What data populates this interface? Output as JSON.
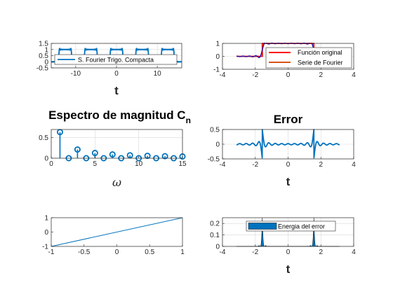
{
  "colors": {
    "blue": "#0072bd",
    "red": "#ff0000",
    "orange": "#d95319",
    "navy": "#0000cc",
    "axis": "#262626",
    "grid": "#d9d9d9"
  },
  "chart_data": [
    {
      "id": "p1",
      "type": "line",
      "xlabel": "t",
      "xlim": [
        -16,
        16
      ],
      "ylim": [
        -0.5,
        1.5
      ],
      "xticks": [
        -10,
        0,
        10
      ],
      "yticks": [
        -0.5,
        0,
        0.5,
        1,
        1.5
      ],
      "ytick_labels": [
        "-0.5",
        "0",
        "0.5",
        "1",
        "1.5"
      ],
      "grid": true,
      "legend_position": "inside-lower",
      "series": [
        {
          "name": "S. Fourier Trigo. Compacta",
          "color": "#0072bd",
          "kind": "square_wave",
          "period": 6.2832,
          "high_halfwidth": 1.5708,
          "harmonics": 15
        }
      ]
    },
    {
      "id": "p2",
      "type": "line",
      "xlabel": "",
      "xlim": [
        -4,
        4
      ],
      "ylim": [
        -1,
        1
      ],
      "xticks": [
        -4,
        -2,
        0,
        2,
        4
      ],
      "yticks": [
        -1,
        0,
        1
      ],
      "ytick_labels": [
        "-1",
        "0",
        "1"
      ],
      "grid": true,
      "legend_position": "lower-right",
      "series": [
        {
          "name": "Función original",
          "color": "#ff0000",
          "kind": "pulse",
          "edges": [
            -1.5708,
            1.5708
          ],
          "x_range": [
            -3.1416,
            3.1416
          ]
        },
        {
          "name": "Serie de Fourier",
          "color": "#d95319",
          "kind": "fourier",
          "edges": [
            -1.5708,
            1.5708
          ],
          "harmonics": 15,
          "x_range": [
            -3.1416,
            3.1416
          ]
        }
      ],
      "overlay": {
        "color": "#0000cc",
        "kind": "fourier",
        "harmonics": 15,
        "x_range": [
          -3.1416,
          3.1416
        ]
      }
    },
    {
      "id": "p3",
      "type": "stem",
      "title": "Espectro de magnitud C",
      "title_subscript": "n",
      "xlabel": "ω",
      "xlim": [
        0,
        15
      ],
      "ylim": [
        0,
        0.7
      ],
      "xticks": [
        0,
        5,
        10,
        15
      ],
      "yticks": [
        0,
        0.5
      ],
      "ytick_labels": [
        "0",
        "0.5"
      ],
      "grid": true,
      "series": [
        {
          "name": "",
          "color": "#0072bd",
          "x": [
            1,
            2,
            3,
            4,
            5,
            6,
            7,
            8,
            9,
            10,
            11,
            12,
            13,
            14,
            15
          ],
          "values": [
            0.637,
            0.0,
            0.212,
            0.0,
            0.127,
            0.0,
            0.091,
            0.0,
            0.071,
            0.0,
            0.058,
            0.0,
            0.049,
            0.0,
            0.042
          ]
        }
      ]
    },
    {
      "id": "p4",
      "type": "line",
      "title": "Error",
      "xlabel": "t",
      "xlim": [
        -4,
        4
      ],
      "ylim": [
        -0.5,
        0.5
      ],
      "xticks": [
        -4,
        -2,
        0,
        2,
        4
      ],
      "yticks": [
        -0.5,
        0,
        0.5
      ],
      "ytick_labels": [
        "-0.5",
        "0",
        "0.5"
      ],
      "grid": true,
      "series": [
        {
          "name": "",
          "color": "#0072bd",
          "kind": "error",
          "edges": [
            -1.5708,
            1.5708
          ],
          "harmonics": 15,
          "x_range": [
            -3.1416,
            3.1416
          ]
        }
      ]
    },
    {
      "id": "p5",
      "type": "line",
      "xlabel": "",
      "xlim": [
        -1,
        1
      ],
      "ylim": [
        -1,
        1
      ],
      "xticks": [
        -1,
        -0.5,
        0,
        0.5,
        1
      ],
      "xtick_labels": [
        "-1",
        "-0.5",
        "0",
        "0.5",
        "1"
      ],
      "yticks": [
        -1,
        0,
        1
      ],
      "ytick_labels": [
        "-1",
        "0",
        "1"
      ],
      "grid": false,
      "series": [
        {
          "name": "",
          "color": "#0072bd",
          "x": [
            -1,
            1
          ],
          "values": [
            -1,
            1
          ]
        }
      ]
    },
    {
      "id": "p6",
      "type": "area",
      "xlabel": "t",
      "xlim": [
        -4,
        4
      ],
      "ylim": [
        0,
        0.25
      ],
      "xticks": [
        -4,
        -2,
        0,
        2,
        4
      ],
      "yticks": [
        0,
        0.1,
        0.2
      ],
      "ytick_labels": [
        "0",
        "0.1",
        "0.2"
      ],
      "grid": true,
      "legend_position": "top",
      "series": [
        {
          "name": "Energia del error",
          "color": "#0072bd",
          "kind": "error_energy",
          "edges": [
            -1.5708,
            1.5708
          ],
          "harmonics": 15,
          "x_range": [
            -3.1416,
            3.1416
          ]
        }
      ]
    }
  ]
}
